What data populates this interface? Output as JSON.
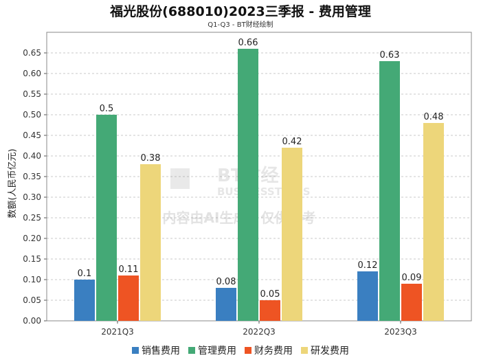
{
  "chart_data": {
    "type": "bar",
    "title": "福光股份(688010)2023三季报 - 费用管理",
    "subtitle": "Q1-Q3 - BT财经绘制",
    "xlabel": "",
    "ylabel": "数额(人民币亿元)",
    "ylim": [
      0,
      0.7
    ],
    "yticks": [
      "0.00",
      "0.05",
      "0.10",
      "0.15",
      "0.20",
      "0.25",
      "0.30",
      "0.35",
      "0.40",
      "0.45",
      "0.50",
      "0.55",
      "0.60",
      "0.65"
    ],
    "categories": [
      "2021Q3",
      "2022Q3",
      "2023Q3"
    ],
    "grid": true,
    "legend_position": "bottom",
    "series": [
      {
        "name": "销售费用",
        "color": "#3a7fc1",
        "values": [
          0.1,
          0.08,
          0.12
        ],
        "labels": [
          "0.1",
          "0.08",
          "0.12"
        ]
      },
      {
        "name": "管理费用",
        "color": "#44a976",
        "values": [
          0.5,
          0.66,
          0.63
        ],
        "labels": [
          "0.5",
          "0.66",
          "0.63"
        ]
      },
      {
        "name": "财务费用",
        "color": "#ee5423",
        "values": [
          0.11,
          0.05,
          0.09
        ],
        "labels": [
          "0.11",
          "0.05",
          "0.09"
        ]
      },
      {
        "name": "研发费用",
        "color": "#edd67a",
        "values": [
          0.38,
          0.42,
          0.48
        ],
        "labels": [
          "0.38",
          "0.42",
          "0.48"
        ]
      }
    ]
  },
  "watermark": {
    "brand": "BT财经",
    "brand_sub": "BUSINESSTIMES",
    "notice": "内容由AI生成，仅供参考"
  }
}
